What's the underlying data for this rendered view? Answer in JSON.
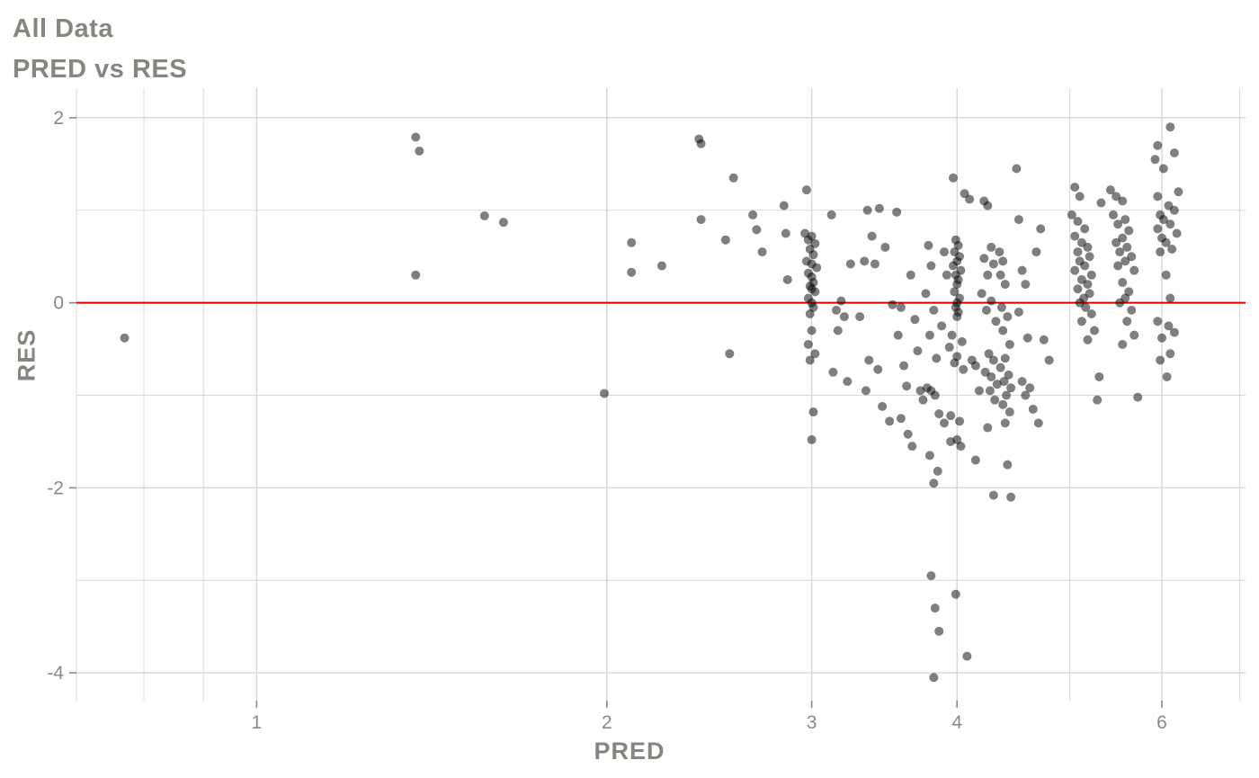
{
  "page": {
    "background": "#ffffff"
  },
  "chart_data": {
    "type": "scatter",
    "title": "All Data",
    "subtitle": "PRED vs RES",
    "xlabel": "PRED",
    "ylabel": "RES",
    "x_scale": "log10",
    "xlim": [
      0.7,
      7.08
    ],
    "ylim": [
      -4.3,
      2.32
    ],
    "x_ticks": [
      1,
      2,
      3,
      4,
      6
    ],
    "x_minor_gridlines": [
      0.7,
      0.8,
      0.9,
      5,
      7
    ],
    "y_ticks": [
      -4,
      -2,
      0,
      2
    ],
    "y_minor_gridlines": [
      -3,
      -1,
      1
    ],
    "reference_line": {
      "y": 0,
      "color": "#e00000"
    },
    "legend": "none",
    "grid": "on",
    "point_color": "#000000",
    "point_opacity": 0.5,
    "point_radius": 5,
    "grid_color": "#d9d9d3",
    "text_color": "#8a8a82",
    "points": [
      [
        0.77,
        -0.38
      ],
      [
        1.37,
        1.79
      ],
      [
        1.38,
        1.64
      ],
      [
        1.37,
        0.3
      ],
      [
        1.57,
        0.94
      ],
      [
        1.63,
        0.87
      ],
      [
        1.99,
        -0.98
      ],
      [
        2.1,
        0.65
      ],
      [
        2.1,
        0.33
      ],
      [
        2.23,
        0.4
      ],
      [
        2.4,
        1.77
      ],
      [
        2.41,
        1.72
      ],
      [
        2.41,
        0.9
      ],
      [
        2.53,
        0.68
      ],
      [
        2.55,
        -0.55
      ],
      [
        2.57,
        1.35
      ],
      [
        2.67,
        0.95
      ],
      [
        2.69,
        0.79
      ],
      [
        2.72,
        0.55
      ],
      [
        2.84,
        1.05
      ],
      [
        2.85,
        0.75
      ],
      [
        2.86,
        0.25
      ],
      [
        2.97,
        1.22
      ],
      [
        2.96,
        0.75
      ],
      [
        3.0,
        0.72
      ],
      [
        2.98,
        0.68
      ],
      [
        3.02,
        0.64
      ],
      [
        2.99,
        0.58
      ],
      [
        3.01,
        0.52
      ],
      [
        2.97,
        0.45
      ],
      [
        3.0,
        0.42
      ],
      [
        3.03,
        0.38
      ],
      [
        2.98,
        0.32
      ],
      [
        3.0,
        0.28
      ],
      [
        3.01,
        0.22
      ],
      [
        2.99,
        0.18
      ],
      [
        3.0,
        0.15
      ],
      [
        3.02,
        0.12
      ],
      [
        2.98,
        0.05
      ],
      [
        3.0,
        0.0
      ],
      [
        3.01,
        -0.05
      ],
      [
        2.99,
        -0.12
      ],
      [
        3.0,
        -0.3
      ],
      [
        2.98,
        -0.45
      ],
      [
        3.02,
        -0.55
      ],
      [
        2.99,
        -0.62
      ],
      [
        3.01,
        -1.18
      ],
      [
        3.0,
        -1.48
      ],
      [
        3.12,
        0.95
      ],
      [
        3.18,
        0.02
      ],
      [
        3.15,
        -0.08
      ],
      [
        3.2,
        -0.15
      ],
      [
        3.16,
        -0.3
      ],
      [
        3.13,
        -0.75
      ],
      [
        3.22,
        -0.85
      ],
      [
        3.24,
        0.42
      ],
      [
        3.35,
        1.0
      ],
      [
        3.43,
        1.02
      ],
      [
        3.38,
        0.72
      ],
      [
        3.33,
        0.45
      ],
      [
        3.4,
        0.42
      ],
      [
        3.47,
        0.6
      ],
      [
        3.36,
        -0.62
      ],
      [
        3.42,
        -0.72
      ],
      [
        3.34,
        -0.95
      ],
      [
        3.45,
        -1.12
      ],
      [
        3.5,
        -1.28
      ],
      [
        3.3,
        -0.15
      ],
      [
        3.52,
        -0.02
      ],
      [
        3.55,
        0.98
      ],
      [
        3.58,
        -0.05
      ],
      [
        3.56,
        -0.35
      ],
      [
        3.6,
        -0.68
      ],
      [
        3.62,
        -0.9
      ],
      [
        3.58,
        -1.25
      ],
      [
        3.63,
        -1.42
      ],
      [
        3.65,
        0.3
      ],
      [
        3.68,
        -0.18
      ],
      [
        3.7,
        -0.52
      ],
      [
        3.72,
        -0.95
      ],
      [
        3.66,
        -1.55
      ],
      [
        3.74,
        -1.05
      ],
      [
        3.78,
        0.62
      ],
      [
        3.8,
        0.4
      ],
      [
        3.76,
        0.1
      ],
      [
        3.82,
        -0.08
      ],
      [
        3.79,
        -0.35
      ],
      [
        3.84,
        -0.6
      ],
      [
        3.77,
        -0.92
      ],
      [
        3.8,
        -0.95
      ],
      [
        3.83,
        -1.0
      ],
      [
        3.86,
        -1.2
      ],
      [
        3.79,
        -1.65
      ],
      [
        3.85,
        -1.82
      ],
      [
        3.82,
        -1.95
      ],
      [
        3.8,
        -2.95
      ],
      [
        3.83,
        -3.3
      ],
      [
        3.86,
        -3.55
      ],
      [
        3.82,
        -4.05
      ],
      [
        3.88,
        -0.25
      ],
      [
        3.9,
        0.55
      ],
      [
        3.92,
        0.3
      ],
      [
        3.94,
        -0.48
      ],
      [
        3.9,
        -1.3
      ],
      [
        3.95,
        -1.5
      ],
      [
        3.97,
        1.35
      ],
      [
        3.99,
        0.68
      ],
      [
        4.01,
        0.62
      ],
      [
        3.98,
        0.55
      ],
      [
        4.02,
        0.5
      ],
      [
        4.0,
        0.45
      ],
      [
        3.97,
        0.4
      ],
      [
        4.03,
        0.35
      ],
      [
        3.99,
        0.3
      ],
      [
        4.01,
        0.25
      ],
      [
        4.0,
        0.2
      ],
      [
        3.98,
        0.12
      ],
      [
        4.02,
        0.05
      ],
      [
        4.0,
        0.0
      ],
      [
        3.99,
        -0.05
      ],
      [
        4.01,
        -0.1
      ],
      [
        4.0,
        -0.15
      ],
      [
        3.96,
        -0.35
      ],
      [
        4.04,
        -0.42
      ],
      [
        4.0,
        -0.58
      ],
      [
        3.98,
        -0.65
      ],
      [
        4.05,
        -0.72
      ],
      [
        3.95,
        -1.22
      ],
      [
        4.02,
        -1.28
      ],
      [
        4.0,
        -1.48
      ],
      [
        4.03,
        -1.55
      ],
      [
        3.99,
        -3.15
      ],
      [
        4.08,
        -3.82
      ],
      [
        4.06,
        1.18
      ],
      [
        4.1,
        1.12
      ],
      [
        4.12,
        -0.62
      ],
      [
        4.15,
        -0.68
      ],
      [
        4.18,
        -0.95
      ],
      [
        4.15,
        -1.7
      ],
      [
        4.22,
        1.1
      ],
      [
        4.25,
        1.05
      ],
      [
        4.28,
        0.6
      ],
      [
        4.22,
        0.48
      ],
      [
        4.3,
        0.42
      ],
      [
        4.25,
        0.3
      ],
      [
        4.2,
        0.1
      ],
      [
        4.28,
        0.02
      ],
      [
        4.24,
        -0.08
      ],
      [
        4.32,
        -0.2
      ],
      [
        4.26,
        -0.55
      ],
      [
        4.3,
        -0.62
      ],
      [
        4.23,
        -0.75
      ],
      [
        4.28,
        -0.8
      ],
      [
        4.33,
        -0.88
      ],
      [
        4.27,
        -0.95
      ],
      [
        4.31,
        -1.05
      ],
      [
        4.25,
        -1.35
      ],
      [
        4.3,
        -2.08
      ],
      [
        4.5,
        1.45
      ],
      [
        4.35,
        0.55
      ],
      [
        4.38,
        0.45
      ],
      [
        4.36,
        0.3
      ],
      [
        4.4,
        0.2
      ],
      [
        4.37,
        -0.05
      ],
      [
        4.42,
        -0.15
      ],
      [
        4.38,
        -0.3
      ],
      [
        4.44,
        -0.45
      ],
      [
        4.4,
        -0.6
      ],
      [
        4.36,
        -0.7
      ],
      [
        4.43,
        -0.78
      ],
      [
        4.39,
        -0.85
      ],
      [
        4.45,
        -0.92
      ],
      [
        4.41,
        -1.0
      ],
      [
        4.38,
        -1.1
      ],
      [
        4.44,
        -1.18
      ],
      [
        4.4,
        -1.3
      ],
      [
        4.42,
        -1.75
      ],
      [
        4.45,
        -2.1
      ],
      [
        4.52,
        0.9
      ],
      [
        4.55,
        0.35
      ],
      [
        4.58,
        0.2
      ],
      [
        4.52,
        -0.1
      ],
      [
        4.6,
        -0.38
      ],
      [
        4.55,
        -0.85
      ],
      [
        4.62,
        -0.92
      ],
      [
        4.58,
        -1.0
      ],
      [
        4.65,
        -1.15
      ],
      [
        4.7,
        -1.3
      ],
      [
        4.72,
        0.8
      ],
      [
        4.75,
        -0.4
      ],
      [
        4.68,
        0.55
      ],
      [
        4.8,
        -0.62
      ],
      [
        5.05,
        1.25
      ],
      [
        5.1,
        1.15
      ],
      [
        5.02,
        0.95
      ],
      [
        5.08,
        0.88
      ],
      [
        5.15,
        0.8
      ],
      [
        5.05,
        0.72
      ],
      [
        5.12,
        0.65
      ],
      [
        5.18,
        0.6
      ],
      [
        5.08,
        0.55
      ],
      [
        5.2,
        0.5
      ],
      [
        5.1,
        0.45
      ],
      [
        5.15,
        0.4
      ],
      [
        5.05,
        0.35
      ],
      [
        5.22,
        0.3
      ],
      [
        5.12,
        0.25
      ],
      [
        5.18,
        0.2
      ],
      [
        5.08,
        0.15
      ],
      [
        5.2,
        0.1
      ],
      [
        5.14,
        0.05
      ],
      [
        5.1,
        0.0
      ],
      [
        5.16,
        -0.05
      ],
      [
        5.22,
        -0.12
      ],
      [
        5.12,
        -0.2
      ],
      [
        5.25,
        -0.3
      ],
      [
        5.18,
        -0.4
      ],
      [
        5.3,
        -0.8
      ],
      [
        5.28,
        -1.05
      ],
      [
        5.32,
        1.08
      ],
      [
        5.42,
        1.22
      ],
      [
        5.48,
        1.15
      ],
      [
        5.55,
        1.1
      ],
      [
        5.45,
        0.95
      ],
      [
        5.58,
        0.9
      ],
      [
        5.5,
        0.85
      ],
      [
        5.62,
        0.78
      ],
      [
        5.55,
        0.7
      ],
      [
        5.48,
        0.65
      ],
      [
        5.6,
        0.6
      ],
      [
        5.52,
        0.55
      ],
      [
        5.65,
        0.5
      ],
      [
        5.58,
        0.45
      ],
      [
        5.5,
        0.4
      ],
      [
        5.68,
        0.35
      ],
      [
        5.55,
        0.22
      ],
      [
        5.62,
        0.12
      ],
      [
        5.58,
        0.05
      ],
      [
        5.52,
        0.0
      ],
      [
        5.65,
        -0.08
      ],
      [
        5.6,
        -0.2
      ],
      [
        5.68,
        -0.35
      ],
      [
        5.55,
        -0.45
      ],
      [
        5.72,
        -1.02
      ],
      [
        6.1,
        1.9
      ],
      [
        5.95,
        1.7
      ],
      [
        6.15,
        1.62
      ],
      [
        5.92,
        1.55
      ],
      [
        6.02,
        1.45
      ],
      [
        6.2,
        1.2
      ],
      [
        5.95,
        1.15
      ],
      [
        6.08,
        1.05
      ],
      [
        6.15,
        1.0
      ],
      [
        5.98,
        0.95
      ],
      [
        6.02,
        0.9
      ],
      [
        6.1,
        0.85
      ],
      [
        5.95,
        0.8
      ],
      [
        6.18,
        0.75
      ],
      [
        6.0,
        0.7
      ],
      [
        6.05,
        0.65
      ],
      [
        6.12,
        0.58
      ],
      [
        5.98,
        0.55
      ],
      [
        6.05,
        0.3
      ],
      [
        6.1,
        0.05
      ],
      [
        5.95,
        -0.2
      ],
      [
        6.08,
        -0.25
      ],
      [
        6.15,
        -0.32
      ],
      [
        6.0,
        -0.38
      ],
      [
        6.1,
        -0.55
      ],
      [
        5.98,
        -0.62
      ],
      [
        6.06,
        -0.8
      ]
    ]
  }
}
